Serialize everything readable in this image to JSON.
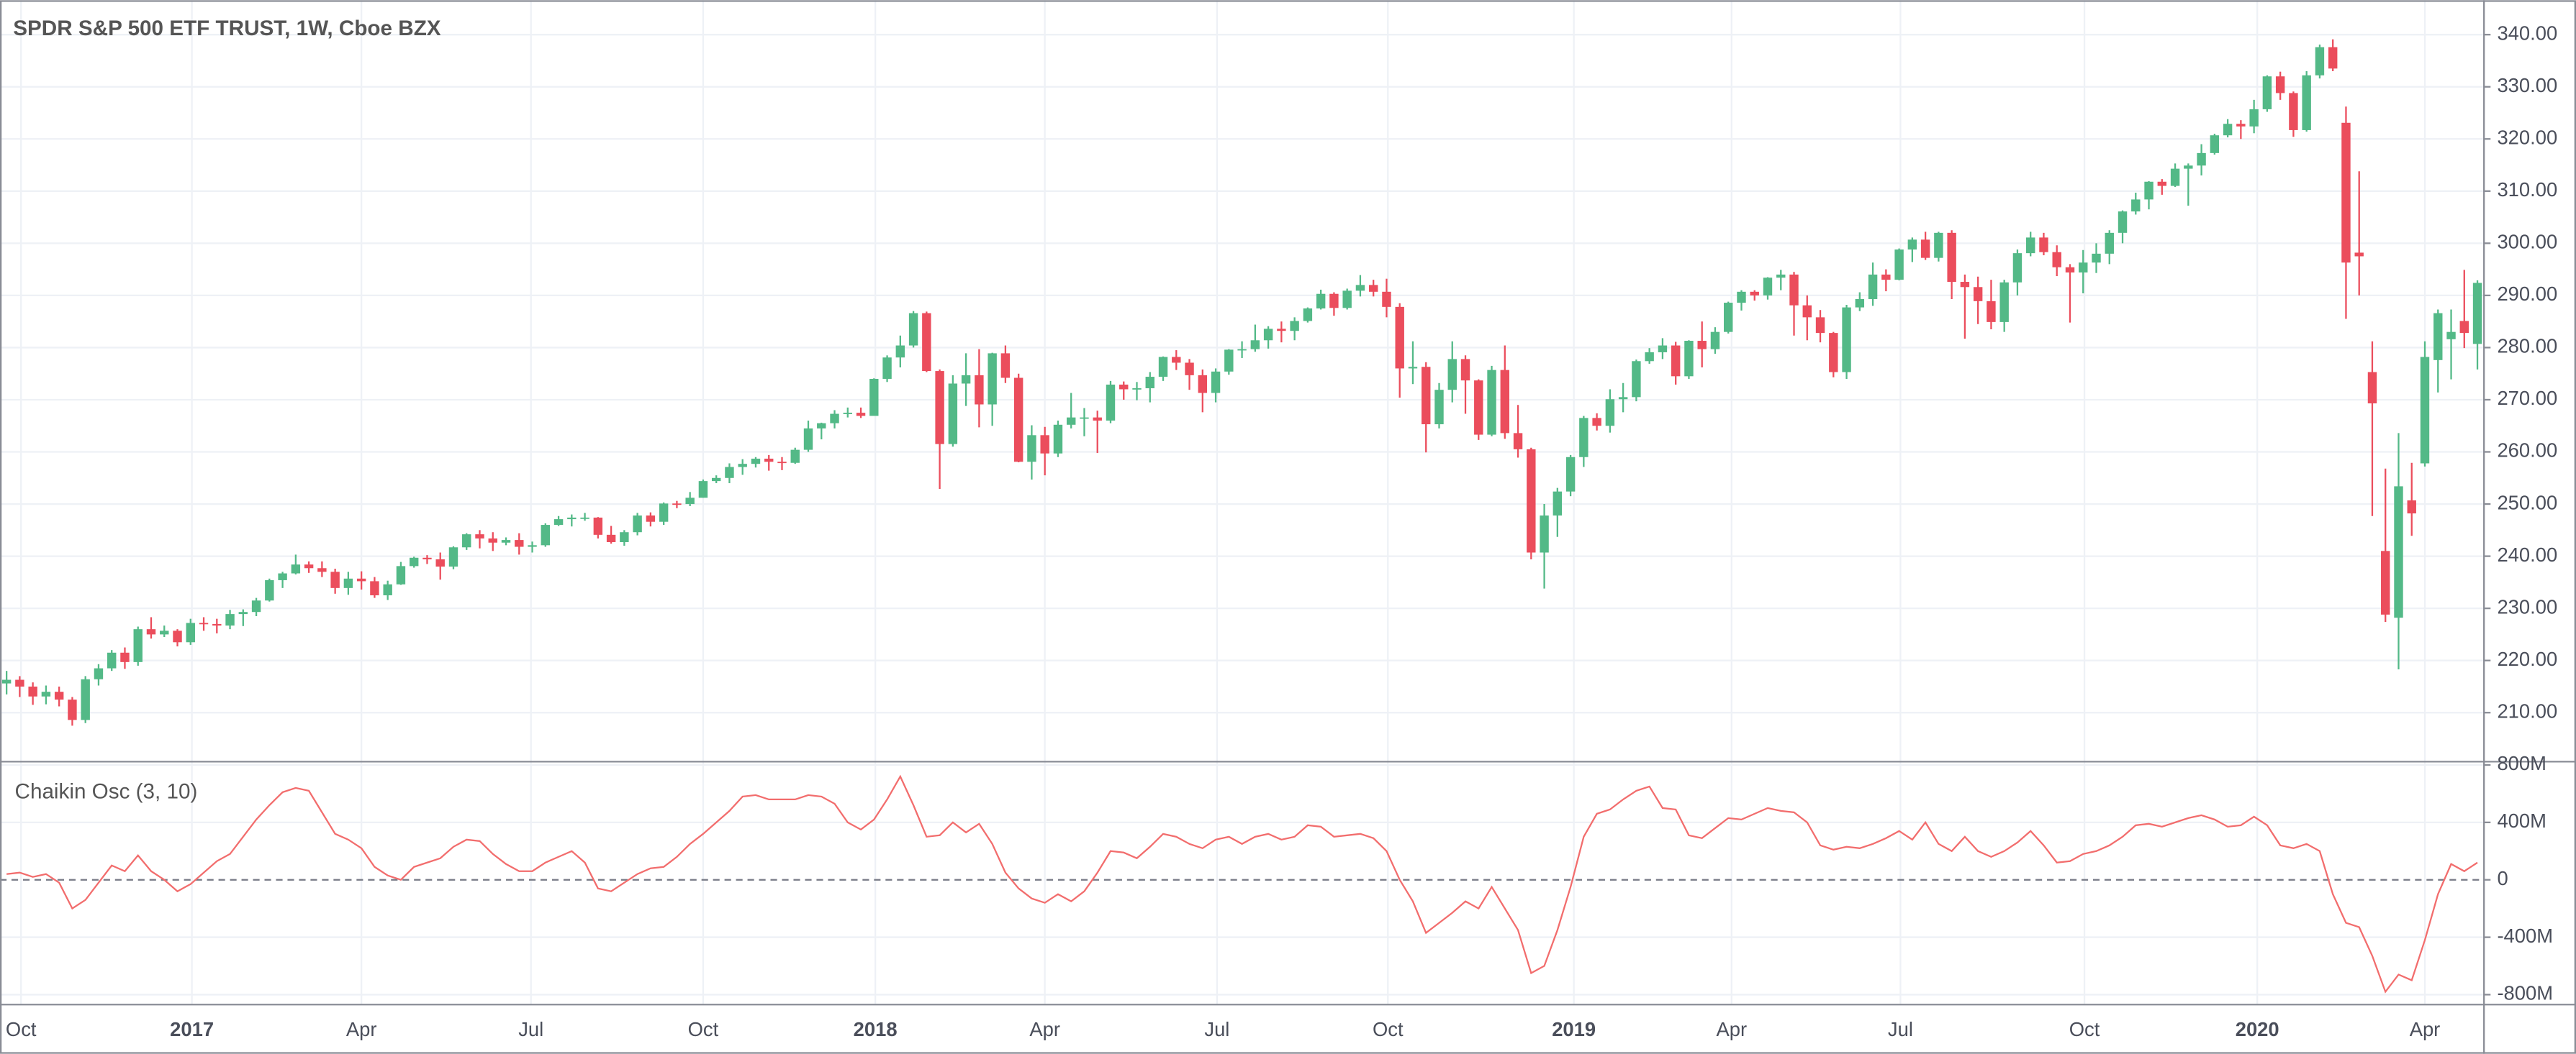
{
  "chart_data": [
    {
      "type": "candlestick",
      "title": "SPDR S&P 500 ETF TRUST, 1W, Cboe BZX",
      "up_color": "#53b987",
      "down_color": "#eb4d5c",
      "open": [
        215.6,
        216.3,
        215.0,
        213.1,
        214.0,
        212.5,
        208.6,
        216.4,
        218.5,
        221.5,
        219.7,
        226.0,
        225.0,
        225.7,
        223.5,
        227.2,
        227.0,
        226.7,
        228.9,
        229.3,
        231.5,
        235.4,
        236.7,
        238.4,
        237.7,
        237.0,
        233.9,
        235.7,
        235.2,
        232.5,
        234.6,
        238.1,
        239.7,
        239.4,
        238.0,
        241.7,
        244.2,
        243.4,
        242.6,
        243.1,
        241.8,
        242.1,
        246.0,
        247.1,
        247.4,
        247.4,
        244.1,
        242.7,
        244.6,
        247.8,
        246.6,
        250.1,
        250.0,
        251.2,
        254.4,
        255.0,
        257.1,
        257.7,
        258.7,
        258.1,
        257.9,
        260.4,
        264.5,
        265.5,
        267.3,
        267.5,
        266.9,
        274.0,
        278.1,
        280.4,
        286.6,
        275.5,
        261.5,
        273.1,
        274.7,
        269.1,
        278.9,
        274.2,
        258.1,
        263.2,
        259.7,
        265.2,
        266.6,
        266.6,
        266.0,
        272.9,
        272.0,
        272.2,
        274.4,
        278.2,
        277.1,
        274.7,
        271.3,
        275.4,
        279.6,
        279.7,
        281.4,
        283.6,
        283.2,
        285.1,
        287.5,
        290.3,
        287.6,
        290.9,
        292.0,
        290.7,
        287.8,
        276.0,
        276.3,
        265.3,
        271.9,
        277.8,
        273.7,
        263.3,
        275.7,
        263.6,
        260.5,
        240.7,
        247.8,
        252.4,
        259.0,
        266.5,
        265.0,
        270.1,
        270.5,
        277.4,
        279.1,
        280.4,
        274.5,
        281.3,
        279.7,
        283.0,
        288.6,
        290.7,
        290.0,
        293.4,
        294.0,
        288.1,
        285.8,
        282.8,
        275.3,
        287.7,
        289.3,
        294.0,
        293.0,
        298.8,
        300.7,
        297.2,
        302.0,
        292.6,
        291.6,
        288.9,
        284.9,
        292.5,
        298.1,
        301.1,
        298.3,
        295.4,
        294.4,
        296.3,
        298.0,
        302.0,
        306.1,
        308.4,
        311.8,
        311.0,
        314.3,
        314.9,
        317.3,
        320.7,
        322.9,
        322.4,
        325.7,
        332.0,
        328.8,
        321.7,
        332.2,
        337.6,
        323.1,
        298.2,
        275.3,
        241.0,
        228.2,
        250.7,
        257.8,
        277.6,
        281.6,
        285.1,
        280.7
      ],
      "high": [
        218.0,
        217.0,
        215.8,
        215.2,
        215.0,
        213.0,
        217.0,
        219.3,
        222.0,
        222.5,
        226.5,
        228.3,
        226.7,
        226.0,
        228.0,
        228.3,
        228.0,
        229.7,
        229.8,
        232.0,
        235.7,
        237.0,
        240.3,
        239.0,
        239.0,
        237.6,
        237.0,
        237.1,
        236.0,
        235.3,
        238.9,
        239.9,
        240.2,
        240.7,
        241.9,
        244.4,
        245.0,
        244.6,
        243.6,
        244.4,
        242.8,
        246.3,
        247.7,
        248.0,
        248.3,
        247.5,
        245.8,
        245.0,
        248.3,
        248.4,
        250.3,
        250.6,
        252.3,
        254.7,
        255.5,
        257.8,
        258.6,
        259.0,
        259.4,
        259.0,
        260.8,
        266.0,
        265.6,
        268.0,
        268.5,
        268.5,
        274.1,
        278.5,
        282.3,
        287.0,
        286.9,
        275.8,
        274.7,
        278.9,
        279.7,
        279.0,
        280.4,
        275.0,
        265.1,
        264.8,
        266.0,
        271.3,
        268.4,
        267.9,
        273.6,
        273.5,
        273.4,
        275.3,
        278.3,
        279.5,
        277.8,
        275.8,
        276.0,
        279.7,
        281.2,
        284.4,
        284.1,
        285.0,
        285.8,
        287.7,
        291.1,
        290.6,
        291.3,
        293.9,
        293.0,
        293.2,
        288.5,
        281.2,
        277.2,
        273.2,
        281.2,
        278.5,
        273.9,
        276.5,
        280.4,
        269.0,
        260.8,
        250.0,
        253.1,
        259.4,
        266.9,
        267.4,
        272.0,
        273.2,
        277.7,
        279.9,
        281.8,
        281.1,
        281.4,
        285.0,
        283.9,
        288.8,
        291.0,
        291.0,
        293.5,
        294.9,
        294.5,
        290.0,
        287.2,
        283.0,
        288.2,
        290.6,
        296.3,
        295.0,
        299.0,
        301.1,
        302.2,
        302.2,
        302.5,
        294.0,
        293.6,
        293.0,
        293.0,
        298.8,
        302.2,
        302.0,
        299.6,
        296.0,
        298.7,
        300.0,
        302.5,
        306.3,
        309.7,
        311.9,
        312.3,
        315.3,
        315.3,
        319.0,
        321.0,
        323.8,
        323.6,
        327.5,
        332.2,
        332.9,
        329.1,
        333.0,
        338.1,
        339.1,
        326.2,
        313.8,
        281.2,
        256.8,
        263.6,
        257.9,
        281.2,
        287.3,
        287.3,
        294.9,
        292.9
      ],
      "low": [
        213.5,
        213.0,
        211.5,
        211.6,
        211.2,
        207.5,
        208.0,
        215.2,
        218.0,
        218.4,
        219.0,
        224.2,
        224.5,
        222.7,
        223.0,
        225.7,
        225.2,
        226.0,
        226.6,
        228.5,
        231.3,
        233.9,
        236.5,
        236.8,
        236.0,
        232.8,
        232.6,
        233.6,
        232.0,
        231.6,
        234.5,
        237.8,
        238.5,
        235.5,
        237.5,
        241.2,
        241.5,
        241.0,
        242.1,
        240.3,
        240.7,
        241.8,
        245.8,
        245.7,
        246.8,
        243.4,
        242.4,
        242.0,
        244.0,
        245.7,
        246.0,
        249.2,
        249.6,
        251.2,
        254.0,
        254.0,
        255.6,
        257.0,
        256.4,
        256.5,
        257.7,
        260.0,
        262.4,
        264.5,
        266.6,
        266.5,
        267.5,
        273.4,
        276.2,
        280.0,
        275.3,
        252.9,
        261.0,
        268.8,
        264.7,
        265.0,
        273.2,
        258.0,
        254.7,
        255.5,
        259.0,
        264.5,
        263.0,
        259.8,
        265.5,
        270.0,
        269.9,
        269.5,
        273.6,
        275.7,
        271.9,
        267.6,
        269.5,
        274.8,
        278.0,
        279.2,
        279.8,
        281.0,
        281.4,
        284.8,
        287.3,
        286.1,
        287.3,
        289.8,
        289.8,
        285.8,
        270.4,
        273.0,
        259.9,
        264.5,
        269.5,
        267.3,
        262.3,
        263.0,
        262.5,
        258.9,
        239.4,
        233.8,
        243.7,
        251.5,
        257.1,
        264.1,
        263.7,
        267.6,
        269.7,
        276.9,
        277.8,
        272.9,
        274.0,
        276.2,
        278.8,
        282.7,
        287.1,
        289.0,
        289.2,
        291.0,
        282.3,
        281.4,
        281.0,
        274.3,
        274.0,
        287.0,
        288.0,
        290.8,
        292.9,
        296.4,
        296.8,
        296.5,
        289.3,
        281.7,
        284.5,
        283.5,
        283.0,
        290.0,
        297.5,
        297.7,
        293.7,
        284.8,
        290.4,
        294.3,
        296.0,
        300.0,
        305.5,
        306.5,
        309.3,
        310.8,
        307.2,
        313.0,
        317.0,
        320.3,
        320.0,
        321.1,
        325.2,
        327.5,
        320.4,
        321.4,
        331.6,
        333.0,
        285.5,
        290.0,
        247.7,
        227.4,
        218.3,
        243.9,
        257.2,
        271.4,
        273.9,
        279.9,
        275.8
      ],
      "close": [
        216.3,
        215.0,
        213.1,
        214.0,
        212.5,
        208.6,
        216.4,
        218.5,
        221.5,
        219.7,
        226.0,
        225.0,
        225.7,
        223.5,
        227.2,
        227.0,
        226.7,
        228.9,
        229.3,
        231.5,
        235.4,
        236.7,
        238.4,
        237.7,
        237.0,
        233.9,
        235.7,
        235.2,
        232.5,
        234.6,
        238.1,
        239.7,
        239.4,
        238.0,
        241.7,
        244.2,
        243.4,
        242.6,
        243.1,
        241.8,
        242.1,
        246.0,
        247.1,
        247.4,
        247.4,
        244.1,
        242.7,
        244.6,
        247.8,
        246.6,
        250.1,
        250.0,
        251.2,
        254.4,
        255.0,
        257.1,
        257.7,
        258.7,
        258.1,
        257.9,
        260.4,
        264.5,
        265.5,
        267.3,
        267.5,
        266.9,
        274.0,
        278.1,
        280.4,
        286.6,
        275.5,
        261.5,
        273.1,
        274.7,
        269.1,
        278.9,
        274.2,
        258.1,
        263.2,
        259.7,
        265.2,
        266.6,
        266.6,
        266.0,
        272.9,
        272.0,
        272.2,
        274.4,
        278.2,
        277.1,
        274.7,
        271.3,
        275.4,
        279.6,
        279.7,
        281.4,
        283.6,
        283.2,
        285.1,
        287.5,
        290.3,
        287.6,
        290.9,
        292.0,
        290.7,
        287.8,
        276.0,
        276.3,
        265.3,
        271.9,
        277.8,
        273.7,
        263.3,
        275.7,
        263.6,
        260.5,
        240.7,
        247.8,
        252.4,
        259.0,
        266.5,
        265.0,
        270.1,
        270.5,
        277.4,
        279.1,
        280.4,
        274.5,
        281.3,
        279.7,
        283.0,
        288.6,
        290.7,
        290.0,
        293.4,
        294.0,
        288.1,
        285.8,
        282.8,
        275.3,
        287.7,
        289.3,
        294.0,
        293.0,
        298.8,
        300.7,
        297.2,
        302.0,
        292.6,
        291.6,
        288.9,
        284.9,
        292.5,
        298.1,
        301.1,
        298.3,
        295.4,
        294.4,
        296.3,
        298.0,
        302.0,
        306.1,
        308.4,
        311.8,
        311.0,
        314.3,
        314.9,
        317.3,
        320.7,
        322.9,
        322.4,
        325.7,
        332.0,
        328.8,
        321.7,
        332.2,
        337.6,
        333.5,
        296.3,
        297.5,
        269.3,
        228.8,
        253.4,
        248.2,
        278.2,
        286.6,
        283.0,
        282.8,
        292.4
      ],
      "xlim": [
        -0.5,
        188.5
      ],
      "ylim": [
        200.6,
        346.6
      ],
      "yticks": [
        {
          "value": 210,
          "label": "210.00"
        },
        {
          "value": 220,
          "label": "220.00"
        },
        {
          "value": 230,
          "label": "230.00"
        },
        {
          "value": 240,
          "label": "240.00"
        },
        {
          "value": 250,
          "label": "250.00"
        },
        {
          "value": 260,
          "label": "260.00"
        },
        {
          "value": 270,
          "label": "270.00"
        },
        {
          "value": 280,
          "label": "280.00"
        },
        {
          "value": 290,
          "label": "290.00"
        },
        {
          "value": 300,
          "label": "300.00"
        },
        {
          "value": 310,
          "label": "310.00"
        },
        {
          "value": 320,
          "label": "320.00"
        },
        {
          "value": 330,
          "label": "330.00"
        },
        {
          "value": 340,
          "label": "340.00"
        }
      ],
      "grid": true
    },
    {
      "type": "line",
      "title": "Chaikin Osc (3, 10)",
      "color": "#f26d6d",
      "zero_line": true,
      "values": [
        40000000.0,
        50000000.0,
        20000000.0,
        40000000.0,
        -20000000.0,
        -200000000.0,
        -140000000.0,
        -20000000.0,
        100000000.0,
        60000000.0,
        170000000.0,
        60000000.0,
        0,
        -80000000.0,
        -30000000.0,
        50000000.0,
        130000000.0,
        180000000.0,
        300000000.0,
        420000000.0,
        520000000.0,
        610000000.0,
        640000000.0,
        620000000.0,
        470000000.0,
        320000000.0,
        280000000.0,
        220000000.0,
        90000000.0,
        30000000.0,
        0,
        90000000.0,
        120000000.0,
        150000000.0,
        230000000.0,
        280000000.0,
        270000000.0,
        180000000.0,
        110000000.0,
        60000000.0,
        60000000.0,
        120000000.0,
        160000000.0,
        200000000.0,
        120000000.0,
        -60000000.0,
        -80000000.0,
        -20000000.0,
        40000000.0,
        80000000.0,
        90000000.0,
        160000000.0,
        250000000.0,
        320000000.0,
        400000000.0,
        480000000.0,
        580000000.0,
        590000000.0,
        560000000.0,
        560000000.0,
        560000000.0,
        590000000.0,
        580000000.0,
        530000000.0,
        400000000.0,
        350000000.0,
        420000000.0,
        560000000.0,
        720000000.0,
        520000000.0,
        300000000.0,
        310000000.0,
        400000000.0,
        330000000.0,
        390000000.0,
        250000000.0,
        50000000.0,
        -60000000.0,
        -130000000.0,
        -160000000.0,
        -100000000.0,
        -150000000.0,
        -80000000.0,
        50000000.0,
        200000000.0,
        190000000.0,
        150000000.0,
        230000000.0,
        320000000.0,
        300000000.0,
        250000000.0,
        220000000.0,
        280000000.0,
        300000000.0,
        250000000.0,
        300000000.0,
        320000000.0,
        280000000.0,
        300000000.0,
        380000000.0,
        370000000.0,
        300000000.0,
        310000000.0,
        320000000.0,
        290000000.0,
        200000000.0,
        0,
        -150000000.0,
        -370000000.0,
        -300000000.0,
        -230000000.0,
        -150000000.0,
        -200000000.0,
        -50000000.0,
        -200000000.0,
        -350000000.0,
        -650000000.0,
        -600000000.0,
        -350000000.0,
        -50000000.0,
        300000000.0,
        460000000.0,
        490000000.0,
        560000000.0,
        620000000.0,
        650000000.0,
        500000000.0,
        490000000.0,
        310000000.0,
        290000000.0,
        360000000.0,
        430000000.0,
        420000000.0,
        460000000.0,
        500000000.0,
        480000000.0,
        470000000.0,
        400000000.0,
        240000000.0,
        210000000.0,
        230000000.0,
        220000000.0,
        250000000.0,
        290000000.0,
        340000000.0,
        280000000.0,
        400000000.0,
        250000000.0,
        200000000.0,
        300000000.0,
        200000000.0,
        160000000.0,
        200000000.0,
        260000000.0,
        340000000.0,
        240000000.0,
        120000000.0,
        130000000.0,
        180000000.0,
        200000000.0,
        240000000.0,
        300000000.0,
        380000000.0,
        390000000.0,
        370000000.0,
        400000000.0,
        430000000.0,
        450000000.0,
        420000000.0,
        370000000.0,
        380000000.0,
        440000000.0,
        380000000.0,
        240000000.0,
        220000000.0,
        250000000.0,
        200000000.0,
        -100000000.0,
        -300000000.0,
        -330000000.0,
        -530000000.0,
        -780000000.0,
        -660000000.0,
        -700000000.0,
        -420000000.0,
        -100000000.0,
        110000000.0,
        60000000.0,
        120000000.0
      ],
      "xlim": [
        -0.5,
        188.5
      ],
      "xticks": [
        {
          "value": 1.1,
          "label": "Oct"
        },
        {
          "value": 14.1,
          "label": "2017"
        },
        {
          "value": 27.0,
          "label": "Apr"
        },
        {
          "value": 39.9,
          "label": "Jul"
        },
        {
          "value": 53.0,
          "label": "Oct"
        },
        {
          "value": 66.1,
          "label": "2018"
        },
        {
          "value": 79.0,
          "label": "Apr"
        },
        {
          "value": 92.1,
          "label": "Jul"
        },
        {
          "value": 105.1,
          "label": "Oct"
        },
        {
          "value": 119.25,
          "label": "2019"
        },
        {
          "value": 131.25,
          "label": "Apr"
        },
        {
          "value": 144.1,
          "label": "Jul"
        },
        {
          "value": 158.1,
          "label": "Oct"
        },
        {
          "value": 171.25,
          "label": "2020"
        },
        {
          "value": 184.0,
          "label": "Apr"
        }
      ],
      "ylim": [
        -869000000.0,
        823000000.0
      ],
      "yticks": [
        {
          "value": -800000000.0,
          "label": "-800M"
        },
        {
          "value": -400000000.0,
          "label": "-400M"
        },
        0,
        {
          "value": 400000000.0,
          "label": "400M"
        },
        {
          "value": 800000000.0,
          "label": "800M"
        }
      ],
      "grid": true
    }
  ]
}
